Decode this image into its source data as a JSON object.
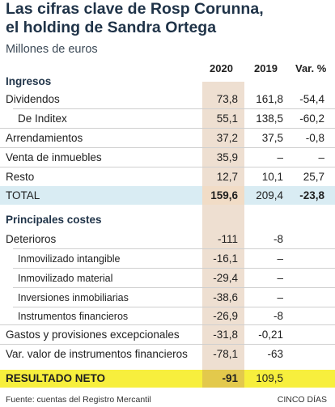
{
  "title_line1": "Las cifras clave de Rosp Corunna,",
  "title_line2": "el holding de Sandra Ortega",
  "subtitle": "Millones de euros",
  "headers": {
    "c1": "2020",
    "c2": "2019",
    "c3": "Var. %"
  },
  "ingresos": {
    "label": "Ingresos",
    "rows": [
      {
        "label": "Dividendos",
        "v2020": "73,8",
        "v2019": "161,8",
        "var": "-54,4"
      },
      {
        "label": "De Inditex",
        "v2020": "55,1",
        "v2019": "138,5",
        "var": "-60,2"
      },
      {
        "label": "Arrendamientos",
        "v2020": "37,2",
        "v2019": "37,5",
        "var": "-0,8"
      },
      {
        "label": "Venta de inmuebles",
        "v2020": "35,9",
        "v2019": "–",
        "var": "–"
      },
      {
        "label": "Resto",
        "v2020": "12,7",
        "v2019": "10,1",
        "var": "25,7"
      }
    ],
    "total": {
      "label": "TOTAL",
      "v2020": "159,6",
      "v2019": "209,4",
      "var": "-23,8"
    }
  },
  "costes": {
    "label": "Principales costes",
    "rows": [
      {
        "label": "Deterioros",
        "v2020": "-111",
        "v2019": "-8"
      },
      {
        "label": "Inmovilizado intangible",
        "v2020": "-16,1",
        "v2019": "–"
      },
      {
        "label": "Inmovilizado material",
        "v2020": "-29,4",
        "v2019": "–"
      },
      {
        "label": "Inversiones inmobiliarias",
        "v2020": "-38,6",
        "v2019": "–"
      },
      {
        "label": "Instrumentos financieros",
        "v2020": "-26,9",
        "v2019": "-8"
      },
      {
        "label": "Gastos y provisiones excepcionales",
        "v2020": "-31,8",
        "v2019": "-0,21"
      },
      {
        "label": "Var. valor de instrumentos financieros",
        "v2020": "-78,1",
        "v2019": "-63"
      }
    ]
  },
  "resultado": {
    "label": "RESULTADO NETO",
    "v2020": "-91",
    "v2019": "109,5"
  },
  "footer": {
    "source": "Fuente: cuentas del Registro Mercantil",
    "brand": "CINCO DÍAS"
  },
  "colors": {
    "highlight_column": "#eedfd1",
    "total_band": "#d9ecf3",
    "result_band": "#f7ef3d",
    "title": "#1f3348"
  }
}
